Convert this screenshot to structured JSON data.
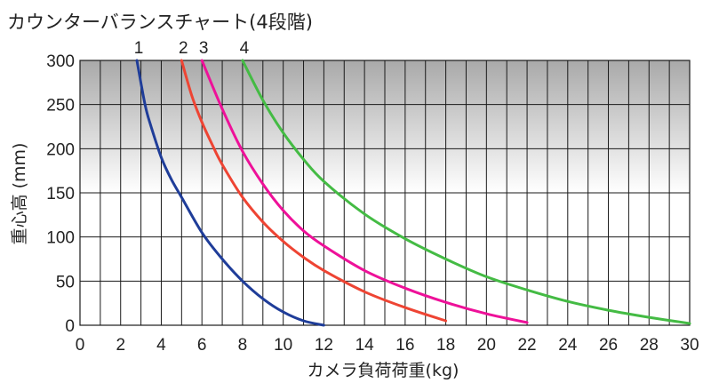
{
  "chart_data": {
    "type": "line",
    "title": "カウンターバランスチャート(4段階)",
    "xlabel": "カメラ負荷荷重(kg)",
    "ylabel": "重心高 (mm)",
    "xlim": [
      0,
      30
    ],
    "ylim": [
      0,
      300
    ],
    "x_ticks": [
      0,
      2,
      4,
      6,
      8,
      10,
      12,
      14,
      16,
      18,
      20,
      22,
      24,
      26,
      28,
      30
    ],
    "y_ticks": [
      0,
      50,
      100,
      150,
      200,
      250,
      300
    ],
    "grid": true,
    "legend": "labels above plot at curve tops",
    "series": [
      {
        "name": "1",
        "color": "#1f3d99",
        "x": [
          2.8,
          3.2,
          3.5,
          4.0,
          4.5,
          5.0,
          6.0,
          7.0,
          8.0,
          9.0,
          10.0,
          11.0,
          12.0
        ],
        "y": [
          300,
          250,
          225,
          190,
          165,
          145,
          105,
          75,
          50,
          30,
          15,
          5,
          0
        ]
      },
      {
        "name": "2",
        "color": "#ee4433",
        "x": [
          5.0,
          5.5,
          6.0,
          6.5,
          7.0,
          8.0,
          9.0,
          10.0,
          11.0,
          12.0,
          14.0,
          16.0,
          18.0
        ],
        "y": [
          300,
          260,
          230,
          205,
          182,
          145,
          117,
          95,
          77,
          62,
          38,
          20,
          5
        ]
      },
      {
        "name": "3",
        "color": "#ee1199",
        "x": [
          6.0,
          7.0,
          8.0,
          9.0,
          10.0,
          11.0,
          12.0,
          14.0,
          16.0,
          18.0,
          20.0,
          22.0
        ],
        "y": [
          300,
          245,
          197,
          160,
          130,
          107,
          90,
          62,
          42,
          26,
          13,
          3
        ]
      },
      {
        "name": "4",
        "color": "#44bb44",
        "x": [
          8.0,
          9.0,
          10.0,
          11.0,
          12.0,
          14.0,
          16.0,
          18.0,
          20.0,
          22.0,
          24.0,
          26.0,
          28.0,
          30.0
        ],
        "y": [
          300,
          255,
          218,
          188,
          163,
          126,
          98,
          75,
          55,
          40,
          27,
          17,
          9,
          2
        ]
      }
    ]
  }
}
